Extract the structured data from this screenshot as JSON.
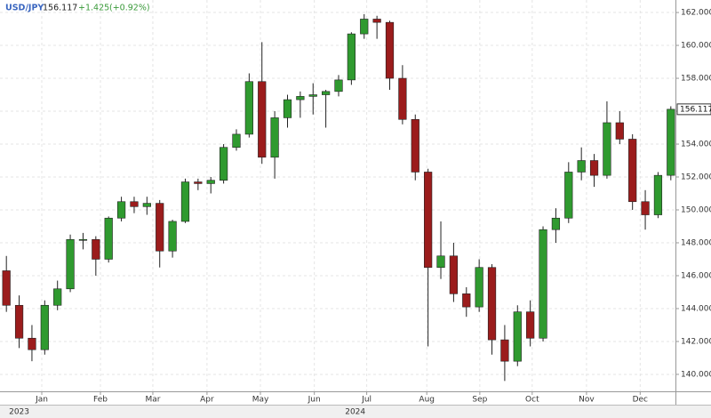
{
  "chart_data": {
    "type": "candlestick",
    "symbol": "USD/JPY",
    "change": "+1.425",
    "change_pct": "(+0.92%)",
    "up_color": "#2f9a2f",
    "down_color": "#9b1c1c",
    "open": [
      146.3,
      144.2,
      142.2,
      141.5,
      144.2,
      145.2,
      148.2,
      148.2,
      147.0,
      149.5,
      150.5,
      150.2,
      150.4,
      147.5,
      149.3,
      151.7,
      151.6,
      151.8,
      153.8,
      154.6,
      157.8,
      153.2,
      155.6,
      156.7,
      156.9,
      157.0,
      157.2,
      157.9,
      160.7,
      161.6,
      161.4,
      158.0,
      155.5,
      152.3,
      146.5,
      147.2,
      144.9,
      144.1,
      146.5,
      142.1,
      140.8,
      143.8,
      142.2,
      148.8,
      149.5,
      152.3,
      153.0,
      152.1,
      155.3,
      154.3,
      150.5,
      149.7,
      152.1
    ],
    "high": [
      147.2,
      144.8,
      143.0,
      144.5,
      145.7,
      148.5,
      148.6,
      148.4,
      149.6,
      150.8,
      150.8,
      150.8,
      150.6,
      149.4,
      151.9,
      151.9,
      152.0,
      154.0,
      154.9,
      158.3,
      160.2,
      156.0,
      157.0,
      157.2,
      157.7,
      157.3,
      158.2,
      160.8,
      161.9,
      161.8,
      161.5,
      158.8,
      155.8,
      152.5,
      149.3,
      148.0,
      145.3,
      147.0,
      146.7,
      143.0,
      144.2,
      144.5,
      149.0,
      150.1,
      152.9,
      153.8,
      153.4,
      156.6,
      156.0,
      154.6,
      151.2,
      152.3,
      156.3
    ],
    "low": [
      143.8,
      141.6,
      140.8,
      141.2,
      143.9,
      145.0,
      147.6,
      146.0,
      146.8,
      149.3,
      149.8,
      149.7,
      146.5,
      147.1,
      149.2,
      151.2,
      151.0,
      151.6,
      153.6,
      154.4,
      152.8,
      151.9,
      155.0,
      155.6,
      155.8,
      155.0,
      156.9,
      157.6,
      160.4,
      160.4,
      157.3,
      155.2,
      151.8,
      141.7,
      145.8,
      144.4,
      143.5,
      143.8,
      141.2,
      139.6,
      140.5,
      141.7,
      142.0,
      148.0,
      149.2,
      151.8,
      151.4,
      151.9,
      154.0,
      150.0,
      148.8,
      149.5,
      151.8
    ],
    "close": [
      144.2,
      142.2,
      141.5,
      144.2,
      145.2,
      148.2,
      148.2,
      147.0,
      149.5,
      150.5,
      150.2,
      150.4,
      147.5,
      149.3,
      151.7,
      151.6,
      151.8,
      153.8,
      154.6,
      157.8,
      153.2,
      155.6,
      156.7,
      156.9,
      157.0,
      157.2,
      157.9,
      160.7,
      161.6,
      161.4,
      158.0,
      155.5,
      152.3,
      146.5,
      147.2,
      144.9,
      144.1,
      146.5,
      142.1,
      140.8,
      143.8,
      142.2,
      148.8,
      149.5,
      152.3,
      153.0,
      152.1,
      155.3,
      154.3,
      150.5,
      149.7,
      152.1,
      156.117
    ],
    "xlim": [
      -0.5,
      52.5
    ],
    "xticks": [
      {
        "value": 2.77,
        "label": "Jan"
      },
      {
        "value": 7.36,
        "label": "Feb"
      },
      {
        "value": 11.46,
        "label": "Mar"
      },
      {
        "value": 15.7,
        "label": "Apr"
      },
      {
        "value": 19.88,
        "label": "May"
      },
      {
        "value": 24.1,
        "label": "Jun"
      },
      {
        "value": 28.2,
        "label": "Jul"
      },
      {
        "value": 32.9,
        "label": "Aug"
      },
      {
        "value": 37.05,
        "label": "Sep"
      },
      {
        "value": 41.15,
        "label": "Oct"
      },
      {
        "value": 45.4,
        "label": "Nov"
      },
      {
        "value": 49.6,
        "label": "Dec"
      }
    ],
    "years": [
      {
        "value": 1.0,
        "label": "2023"
      },
      {
        "value": 27.3,
        "label": "2024"
      }
    ],
    "ylim": [
      138.97,
      162.76
    ],
    "yticks": [
      {
        "value": 140,
        "label": "140.000"
      },
      {
        "value": 142,
        "label": "142.000"
      },
      {
        "value": 144,
        "label": "144.000"
      },
      {
        "value": 146,
        "label": "146.000"
      },
      {
        "value": 148,
        "label": "148.000"
      },
      {
        "value": 150,
        "label": "150.000"
      },
      {
        "value": 152,
        "label": "152.000"
      },
      {
        "value": 154,
        "label": "154.000"
      },
      {
        "value": 156,
        "label": "156.000"
      },
      {
        "value": 158,
        "label": "158.000"
      },
      {
        "value": 160,
        "label": "160.000"
      },
      {
        "value": 162,
        "label": "162.000"
      }
    ],
    "grid": true
  }
}
